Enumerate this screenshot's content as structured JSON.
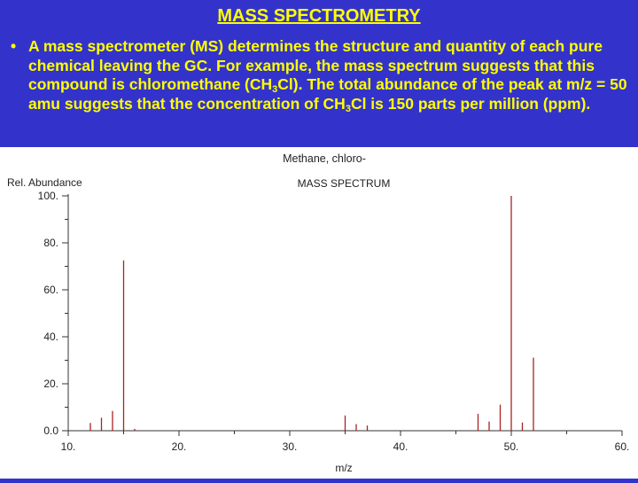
{
  "slide": {
    "title": "MASS SPECTROMETRY",
    "bullet_symbol": "•",
    "bullet": {
      "part1": "A mass spectrometer (MS) determines the structure and quantity of each pure chemical leaving the GC.  For example, the mass spectrum suggests that this compound is chloromethane (CH",
      "sub1": "3",
      "part2": "Cl).  The total abundance of the peak at m/z = 50 amu suggests that the concentration of CH",
      "sub2": "3",
      "part3": "Cl is 150 parts per million (ppm)."
    }
  },
  "chart_data": {
    "type": "bar",
    "title": "Methane, chloro-",
    "subtitle": "MASS SPECTRUM",
    "xlabel": "m/z",
    "ylabel": "Rel. Abundance",
    "xlim": [
      10,
      60
    ],
    "ylim": [
      0,
      100
    ],
    "x_ticks": [
      "10.",
      "20.",
      "30.",
      "40.",
      "50.",
      "60."
    ],
    "y_ticks": [
      "0.0",
      "20.",
      "40.",
      "60.",
      "80.",
      "100."
    ],
    "bar_color": "#aa2222",
    "x": [
      12,
      13,
      14,
      15,
      16,
      35,
      36,
      37,
      47,
      48,
      49,
      50,
      51,
      52
    ],
    "values": [
      3.3,
      5.5,
      8.4,
      72.5,
      0.8,
      6.5,
      2.8,
      2.2,
      7.2,
      3.9,
      11.1,
      100,
      3.5,
      31.1
    ]
  }
}
